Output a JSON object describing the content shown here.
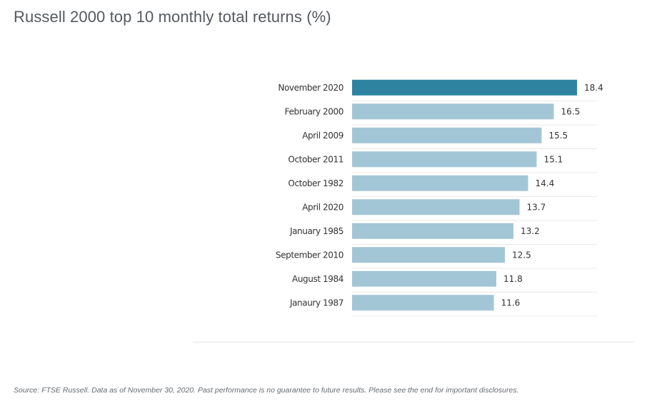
{
  "title": "Russell 2000 top 10 monthly total returns (%)",
  "source": "Source: FTSE Russell. Data as of November 30, 2020. Past performance is no guarantee to future results. Please see the end for important disclosures.",
  "colors": {
    "highlight": "#2e84a0",
    "bar": "#a3c6d6",
    "row_line": "#e8e8e8"
  },
  "chart_data": {
    "type": "bar",
    "orientation": "horizontal",
    "title": "Russell 2000 top 10 monthly total returns (%)",
    "categories": [
      "November 2020",
      "February 2000",
      "April 2009",
      "October 2011",
      "October 1982",
      "April 2020",
      "January 1985",
      "September 2010",
      "August 1984",
      "Janaury 1987"
    ],
    "values": [
      18.4,
      16.5,
      15.5,
      15.1,
      14.4,
      13.7,
      13.2,
      12.5,
      11.8,
      11.6
    ],
    "value_labels": [
      "18.4",
      "16.5",
      "15.5",
      "15.1",
      "14.4",
      "13.7",
      "13.2",
      "12.5",
      "11.8",
      "11.6"
    ],
    "highlighted": [
      "November 2020"
    ],
    "xlim": [
      0,
      20
    ],
    "grid": false,
    "legend": "none"
  }
}
